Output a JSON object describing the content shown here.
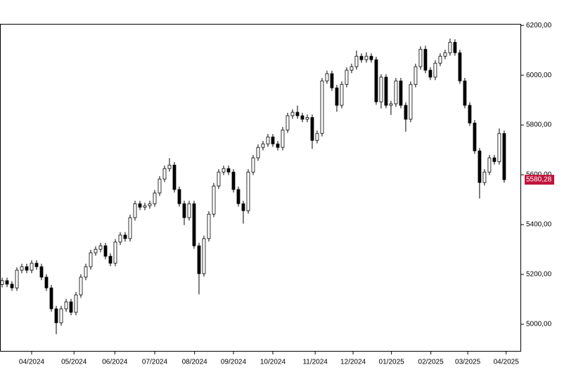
{
  "chart_data": {
    "type": "candlestick",
    "open": [
      5160,
      5175,
      5161,
      5146,
      5217,
      5231,
      5217,
      5245,
      5231,
      5189,
      5146,
      5062,
      5006,
      5062,
      5090,
      5048,
      5118,
      5189,
      5231,
      5287,
      5301,
      5315,
      5273,
      5245,
      5330,
      5358,
      5344,
      5428,
      5484,
      5470,
      5476,
      5484,
      5527,
      5583,
      5625,
      5639,
      5541,
      5484,
      5428,
      5484,
      5315,
      5203,
      5344,
      5442,
      5555,
      5611,
      5625,
      5611,
      5541,
      5484,
      5456,
      5611,
      5668,
      5710,
      5724,
      5752,
      5724,
      5710,
      5780,
      5837,
      5851,
      5837,
      5823,
      5830,
      5738,
      5766,
      5977,
      6006,
      5949,
      5879,
      5963,
      6020,
      6034,
      6076,
      6062,
      6076,
      6062,
      5893,
      5992,
      5879,
      5885,
      5977,
      5879,
      5823,
      5963,
      6034,
      6104,
      6020,
      5992,
      6048,
      6076,
      6090,
      6132,
      6090,
      5977,
      5879,
      5808,
      5696,
      5569,
      5611,
      5668,
      5653,
      5766
    ],
    "high": [
      5187,
      5187,
      5173,
      5229,
      5243,
      5243,
      5257,
      5257,
      5243,
      5201,
      5158,
      5074,
      5074,
      5102,
      5102,
      5130,
      5201,
      5243,
      5299,
      5313,
      5327,
      5327,
      5285,
      5342,
      5370,
      5370,
      5440,
      5496,
      5496,
      5488,
      5496,
      5539,
      5595,
      5637,
      5667,
      5651,
      5553,
      5496,
      5496,
      5496,
      5327,
      5356,
      5454,
      5567,
      5623,
      5637,
      5637,
      5623,
      5553,
      5496,
      5623,
      5680,
      5722,
      5736,
      5764,
      5764,
      5736,
      5792,
      5849,
      5863,
      5878,
      5849,
      5842,
      5842,
      5778,
      5989,
      6018,
      6018,
      5961,
      5975,
      6032,
      6046,
      6099,
      6088,
      6092,
      6088,
      6074,
      6004,
      6004,
      5897,
      5989,
      5989,
      5891,
      5975,
      6046,
      6116,
      6118,
      6032,
      6060,
      6088,
      6102,
      6147,
      6144,
      6102,
      5989,
      5891,
      5820,
      5708,
      5623,
      5680,
      5680,
      5786,
      5778
    ],
    "low": [
      5148,
      5149,
      5134,
      5134,
      5205,
      5205,
      5205,
      5219,
      5177,
      5134,
      5050,
      4960,
      4994,
      5050,
      5036,
      5036,
      5106,
      5177,
      5219,
      5275,
      5289,
      5261,
      5233,
      5233,
      5318,
      5332,
      5332,
      5416,
      5458,
      5458,
      5464,
      5472,
      5515,
      5571,
      5613,
      5529,
      5472,
      5398,
      5416,
      5303,
      5120,
      5191,
      5332,
      5430,
      5543,
      5599,
      5599,
      5529,
      5472,
      5404,
      5444,
      5599,
      5656,
      5698,
      5712,
      5712,
      5698,
      5698,
      5768,
      5825,
      5825,
      5811,
      5811,
      5704,
      5726,
      5754,
      5965,
      5937,
      5853,
      5867,
      5951,
      6008,
      6022,
      6050,
      6050,
      6050,
      5881,
      5866,
      5867,
      5840,
      5873,
      5867,
      5773,
      5811,
      5951,
      6022,
      6008,
      5980,
      5980,
      6036,
      6064,
      6078,
      6078,
      5965,
      5867,
      5796,
      5684,
      5505,
      5557,
      5599,
      5641,
      5641,
      5568
    ],
    "close": [
      5175,
      5161,
      5146,
      5217,
      5231,
      5217,
      5245,
      5231,
      5189,
      5146,
      5062,
      5006,
      5062,
      5090,
      5048,
      5118,
      5189,
      5231,
      5287,
      5301,
      5315,
      5273,
      5245,
      5330,
      5358,
      5344,
      5428,
      5484,
      5470,
      5476,
      5484,
      5527,
      5583,
      5625,
      5639,
      5541,
      5484,
      5428,
      5484,
      5315,
      5203,
      5344,
      5442,
      5555,
      5611,
      5625,
      5611,
      5541,
      5484,
      5456,
      5611,
      5668,
      5710,
      5724,
      5752,
      5724,
      5710,
      5780,
      5837,
      5851,
      5837,
      5823,
      5830,
      5738,
      5766,
      5977,
      6006,
      5949,
      5879,
      5963,
      6020,
      6034,
      6076,
      6062,
      6076,
      6062,
      5893,
      5992,
      5879,
      5885,
      5977,
      5879,
      5823,
      5963,
      6034,
      6104,
      6020,
      5992,
      6048,
      6076,
      6090,
      6132,
      6090,
      5977,
      5879,
      5808,
      5696,
      5569,
      5611,
      5668,
      5653,
      5766,
      5580.28
    ],
    "last_value_label": "5580,28",
    "last_label_color": "#c0143c",
    "up_color": "#ffffff",
    "down_color": "#000000",
    "wick_color": "#000000",
    "xlim": [
      -0.43,
      105.3
    ],
    "xticks": [
      {
        "value": 6,
        "label": "04/2024"
      },
      {
        "value": 14.6,
        "label": "05/2024"
      },
      {
        "value": 22.9,
        "label": "06/2024"
      },
      {
        "value": 31,
        "label": "07/2024"
      },
      {
        "value": 39.1,
        "label": "08/2024"
      },
      {
        "value": 47,
        "label": "09/2024"
      },
      {
        "value": 55,
        "label": "10/2024"
      },
      {
        "value": 63.6,
        "label": "11/2024"
      },
      {
        "value": 71.3,
        "label": "12/2024"
      },
      {
        "value": 79.1,
        "label": "01/2025"
      },
      {
        "value": 87.1,
        "label": "02/2025"
      },
      {
        "value": 94.6,
        "label": "03/2025"
      },
      {
        "value": 102.4,
        "label": "04/2025"
      }
    ],
    "ylim": [
      4893,
      6206
    ],
    "yticks": [
      {
        "value": 5000,
        "label": "5000,00"
      },
      {
        "value": 5200,
        "label": "5200,00"
      },
      {
        "value": 5400,
        "label": "5400,00"
      },
      {
        "value": 5600,
        "label": "5600,00"
      },
      {
        "value": 5800,
        "label": "5800,00"
      },
      {
        "value": 6000,
        "label": "6000,00"
      },
      {
        "value": 6200,
        "label": "6200,00"
      }
    ]
  }
}
